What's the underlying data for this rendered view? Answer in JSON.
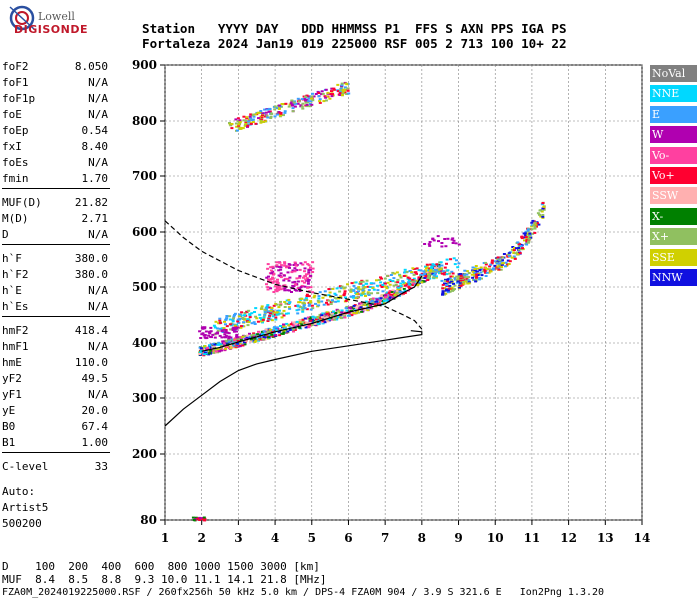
{
  "logo": {
    "top": "Lowell",
    "bottom": "DIGISONDE"
  },
  "header": {
    "line1": "Station   YYYY DAY   DDD HHMMSS P1  FFS S AXN PPS IGA PS",
    "line2": "Fortaleza 2024 Jan19 019 225000 RSF 005 2 713 100 10+ 22"
  },
  "params": [
    {
      "name": "foF2",
      "value": "8.050"
    },
    {
      "name": "foF1",
      "value": "N/A"
    },
    {
      "name": "foF1p",
      "value": "N/A"
    },
    {
      "name": "foE",
      "value": "N/A"
    },
    {
      "name": "foEp",
      "value": "0.54"
    },
    {
      "name": "fxI",
      "value": "8.40"
    },
    {
      "name": "foEs",
      "value": "N/A"
    },
    {
      "name": "fmin",
      "value": "1.70"
    },
    {
      "name": "MUF(D)",
      "value": "21.82"
    },
    {
      "name": "M(D)",
      "value": "2.71"
    },
    {
      "name": "D",
      "value": "N/A"
    },
    {
      "name": "h`F",
      "value": "380.0"
    },
    {
      "name": "h`F2",
      "value": "380.0"
    },
    {
      "name": "h`E",
      "value": "N/A"
    },
    {
      "name": "h`Es",
      "value": "N/A"
    },
    {
      "name": "hmF2",
      "value": "418.4"
    },
    {
      "name": "hmF1",
      "value": "N/A"
    },
    {
      "name": "hmE",
      "value": "110.0"
    },
    {
      "name": "yF2",
      "value": "49.5"
    },
    {
      "name": "yF1",
      "value": "N/A"
    },
    {
      "name": "yE",
      "value": "20.0"
    },
    {
      "name": "B0",
      "value": "67.4"
    },
    {
      "name": "B1",
      "value": "1.00"
    },
    {
      "name": "C-level",
      "value": "33"
    }
  ],
  "autoscaling": {
    "line1": "Auto:",
    "line2": "Artist5",
    "line3": "500200"
  },
  "legend": [
    {
      "label": "NoVal",
      "color": "#808080"
    },
    {
      "label": "NNE",
      "color": "#00d8ff"
    },
    {
      "label": "E",
      "color": "#3aa0ff"
    },
    {
      "label": "W",
      "color": "#b000b0"
    },
    {
      "label": "Vo-",
      "color": "#ff40a0"
    },
    {
      "label": "Vo+",
      "color": "#ff0030"
    },
    {
      "label": "SSW",
      "color": "#ffb0b0"
    },
    {
      "label": "X-",
      "color": "#008000"
    },
    {
      "label": "X+",
      "color": "#90c060"
    },
    {
      "label": "SSE",
      "color": "#d0d000"
    },
    {
      "label": "NNW",
      "color": "#1010e0"
    }
  ],
  "footer": {
    "d_line": "D    100  200  400  600  800 1000 1500 3000 [km]",
    "muf_line": "MUF  8.4  8.5  8.8  9.3 10.0 11.1 14.1 21.8 [MHz]",
    "file_line": "FZA0M_2024019225000.RSF / 260fx256h 50 kHz 5.0 km / DPS-4 FZA0M 904 / 3.9 S 321.6 E   Ion2Png 1.3.20"
  },
  "chart_data": {
    "type": "scatter",
    "x_ticks": [
      "1",
      "2",
      "3",
      "4",
      "5",
      "6",
      "7",
      "8",
      "9",
      "10",
      "11",
      "12",
      "13",
      "14"
    ],
    "y_ticks": [
      "80",
      "200",
      "300",
      "400",
      "500",
      "600",
      "700",
      "800",
      "900"
    ],
    "xlim": [
      1,
      14
    ],
    "y_scale": "piecewise",
    "grid": true,
    "series": [
      {
        "color": "#000000",
        "x": [
          2.0,
          2.5,
          3.0,
          4.0,
          5.0,
          6.0,
          7.0,
          7.5,
          7.8,
          8.0
        ],
        "y": [
          385,
          392,
          402,
          420,
          435,
          455,
          470,
          490,
          500,
          520
        ]
      },
      {
        "color": "#000000",
        "x": [
          1.0,
          1.5,
          2.0,
          2.5,
          3.0,
          3.5,
          4.0,
          5.0,
          6.0,
          7.0,
          7.5,
          8.0,
          8.0,
          7.7
        ],
        "y": [
          250,
          280,
          305,
          330,
          350,
          362,
          370,
          385,
          395,
          405,
          410,
          415,
          420,
          422
        ]
      },
      {
        "color": "#000000",
        "x": [
          1.0,
          1.5,
          2.0,
          3.0,
          4.0,
          5.0,
          6.0,
          7.0,
          7.5,
          7.8,
          8.0
        ],
        "y": [
          620,
          590,
          565,
          530,
          505,
          490,
          478,
          465,
          450,
          440,
          425
        ]
      }
    ]
  }
}
